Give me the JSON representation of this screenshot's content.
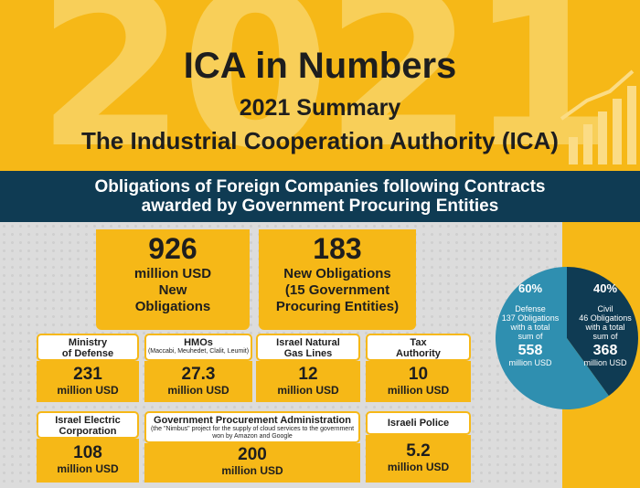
{
  "header": {
    "year": "2021",
    "title": "ICA in Numbers",
    "subtitle": "2021 Summary",
    "org": "The Industrial Cooperation Authority (ICA)"
  },
  "banner": {
    "line1": "Obligations of Foreign Companies following Contracts",
    "line2": "awarded by Government Procuring Entities"
  },
  "totals": [
    {
      "value": "926",
      "line1": "million USD",
      "line2": "New",
      "line3": "Obligations"
    },
    {
      "value": "183",
      "line1": "New Obligations",
      "line2": "(15 Government",
      "line3": "Procuring Entities)"
    }
  ],
  "entities": [
    {
      "label1": "Ministry",
      "label2": "of Defense",
      "note": "",
      "value": "231",
      "unit": "million USD"
    },
    {
      "label1": "HMOs",
      "label2": "",
      "note": "(Maccabi, Meuhedet, Clalit, Leumit)",
      "value": "27.3",
      "unit": "million USD"
    },
    {
      "label1": "Israel Natural",
      "label2": "Gas Lines",
      "note": "",
      "value": "12",
      "unit": "million USD"
    },
    {
      "label1": "Tax",
      "label2": "Authority",
      "note": "",
      "value": "10",
      "unit": "million USD"
    },
    {
      "label1": "Israel Electric",
      "label2": "Corporation",
      "note": "",
      "value": "108",
      "unit": "million USD"
    },
    {
      "label1": "Government Procurement Administration",
      "label2": "",
      "note1": "(the \"Nimbus\" project for the supply of cloud services to the government",
      "note2": "won by Amazon and Google",
      "value": "200",
      "unit": "million USD"
    },
    {
      "label1": "Israeli Police",
      "label2": "",
      "note": "",
      "value": "5.2",
      "unit": "million USD"
    }
  ],
  "chart_data": {
    "type": "pie",
    "slices": [
      {
        "pct": "60%",
        "value": 60,
        "label": "Defense",
        "l2": "137 Obligations",
        "l3": "with a total",
        "l4": "sum of",
        "amount": "558",
        "unit": "million USD",
        "color": "#2f8fb0"
      },
      {
        "pct": "40%",
        "value": 40,
        "label": "Civil",
        "l2": "46 Obligations",
        "l3": "with a total",
        "l4": "sum of",
        "amount": "368",
        "unit": "million USD",
        "color": "#0f3b53"
      }
    ]
  }
}
